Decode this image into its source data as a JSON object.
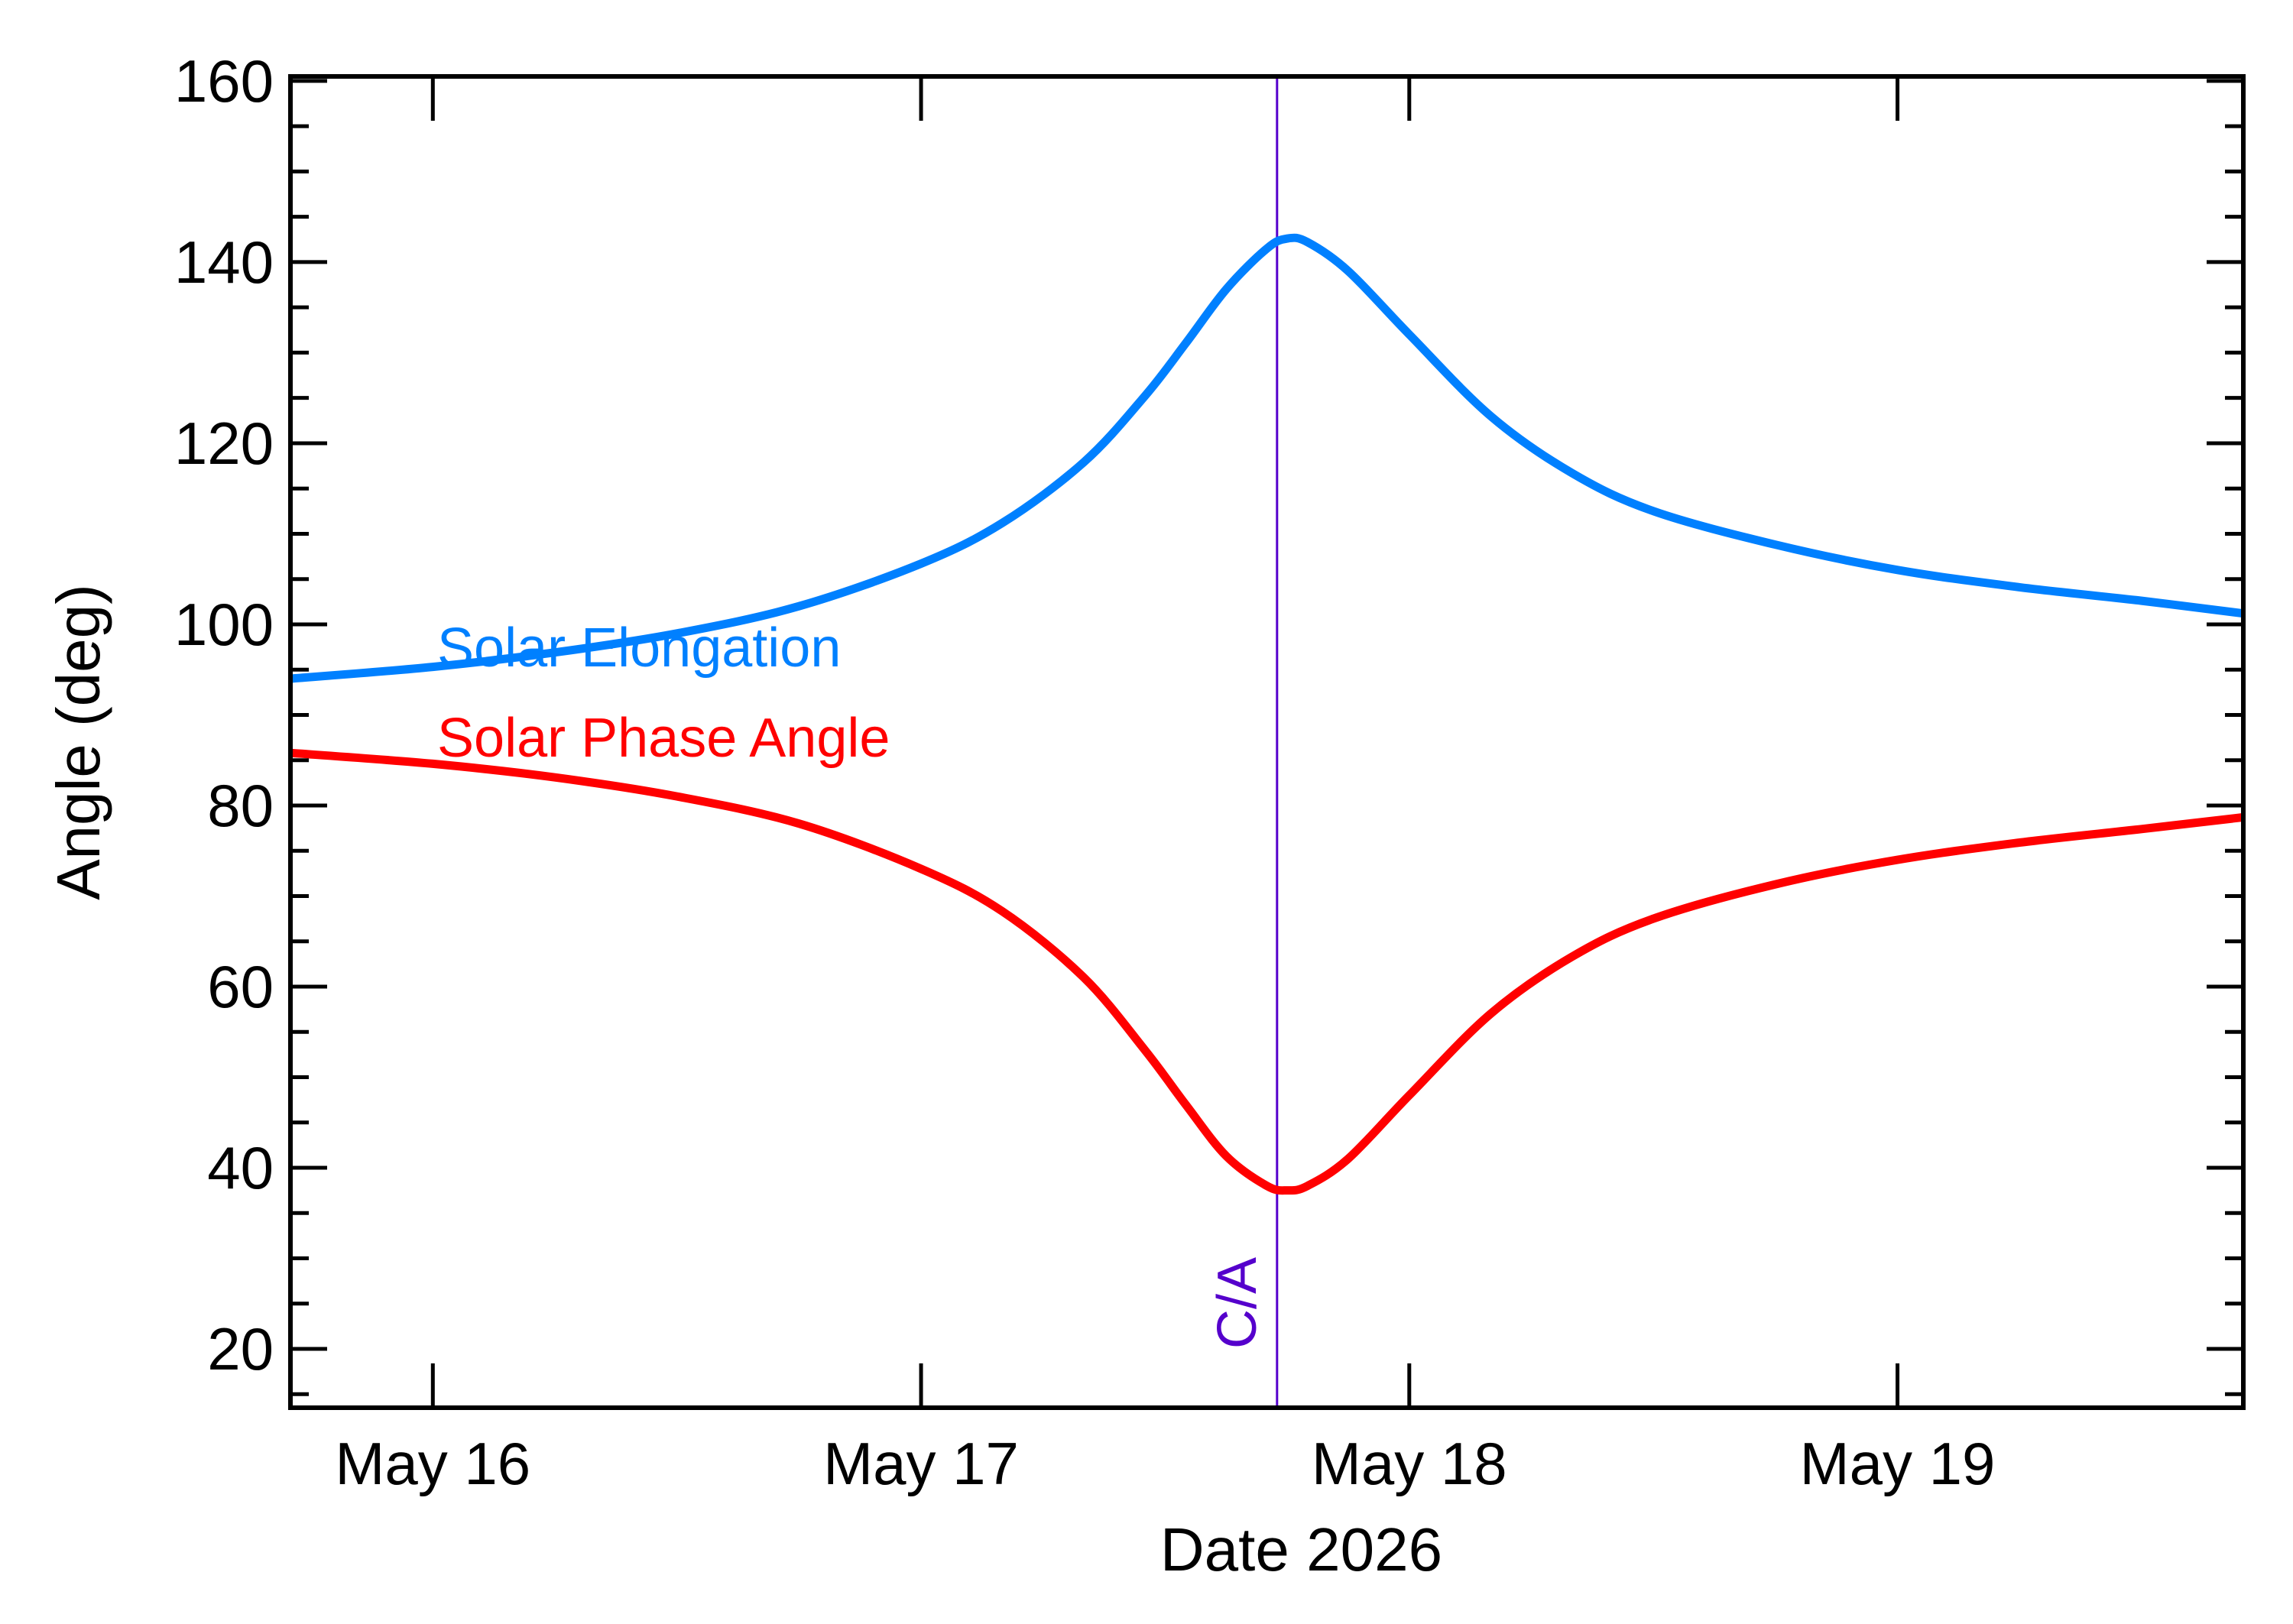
{
  "chart_data": {
    "type": "line",
    "title": "",
    "xlabel": "Date 2026",
    "ylabel": "Angle (deg)",
    "xlim": [
      "2026-05-15 17:00",
      "2026-05-19 17:00"
    ],
    "ylim": [
      13.5,
      160.5
    ],
    "x_ticks": [
      {
        "date": "2026-05-16",
        "label": "May 16"
      },
      {
        "date": "2026-05-17",
        "label": "May 17"
      },
      {
        "date": "2026-05-18",
        "label": "May 18"
      },
      {
        "date": "2026-05-19",
        "label": "May 19"
      }
    ],
    "y_ticks": [
      20,
      40,
      60,
      80,
      100,
      120,
      140,
      160
    ],
    "y_minor_step": 5,
    "grid": false,
    "legend_position": "left",
    "closest_approach": {
      "label": "C/A",
      "date": "2026-05-17 17:30",
      "color": "#5500cc"
    },
    "series": [
      {
        "name": "Solar Elongation",
        "color": "#0080ff",
        "points": [
          [
            "2026-05-15 17:00",
            94.0
          ],
          [
            "2026-05-16 00:00",
            95.3
          ],
          [
            "2026-05-16 06:00",
            96.9
          ],
          [
            "2026-05-16 12:00",
            99.0
          ],
          [
            "2026-05-16 18:00",
            102.0
          ],
          [
            "2026-05-17 00:00",
            106.7
          ],
          [
            "2026-05-17 04:00",
            111.2
          ],
          [
            "2026-05-17 08:00",
            117.9
          ],
          [
            "2026-05-17 11:00",
            125.2
          ],
          [
            "2026-05-17 13:00",
            131.0
          ],
          [
            "2026-05-17 15:00",
            137.0
          ],
          [
            "2026-05-17 17:00",
            141.5
          ],
          [
            "2026-05-17 18:00",
            142.6
          ],
          [
            "2026-05-17 19:00",
            142.2
          ],
          [
            "2026-05-17 21:00",
            139.0
          ],
          [
            "2026-05-18 00:00",
            132.0
          ],
          [
            "2026-05-18 04:00",
            123.0
          ],
          [
            "2026-05-18 08:00",
            116.7
          ],
          [
            "2026-05-18 12:00",
            112.5
          ],
          [
            "2026-05-18 18:00",
            108.8
          ],
          [
            "2026-05-19 00:00",
            106.0
          ],
          [
            "2026-05-19 06:00",
            104.1
          ],
          [
            "2026-05-19 12:00",
            102.6
          ],
          [
            "2026-05-19 17:00",
            101.2
          ]
        ]
      },
      {
        "name": "Solar Phase Angle",
        "color": "#ff0000",
        "points": [
          [
            "2026-05-15 17:00",
            85.8
          ],
          [
            "2026-05-16 00:00",
            84.6
          ],
          [
            "2026-05-16 06:00",
            83.1
          ],
          [
            "2026-05-16 12:00",
            81.0
          ],
          [
            "2026-05-16 18:00",
            78.0
          ],
          [
            "2026-05-17 00:00",
            73.0
          ],
          [
            "2026-05-17 04:00",
            68.3
          ],
          [
            "2026-05-17 08:00",
            61.0
          ],
          [
            "2026-05-17 11:00",
            53.0
          ],
          [
            "2026-05-17 13:00",
            47.0
          ],
          [
            "2026-05-17 15:00",
            41.3
          ],
          [
            "2026-05-17 17:00",
            38.0
          ],
          [
            "2026-05-17 18:00",
            37.5
          ],
          [
            "2026-05-17 19:00",
            38.0
          ],
          [
            "2026-05-17 21:00",
            41.0
          ],
          [
            "2026-05-18 00:00",
            48.0
          ],
          [
            "2026-05-18 04:00",
            57.0
          ],
          [
            "2026-05-18 08:00",
            63.3
          ],
          [
            "2026-05-18 12:00",
            67.5
          ],
          [
            "2026-05-18 18:00",
            71.3
          ],
          [
            "2026-05-19 00:00",
            74.0
          ],
          [
            "2026-05-19 06:00",
            75.9
          ],
          [
            "2026-05-19 12:00",
            77.4
          ],
          [
            "2026-05-19 17:00",
            78.7
          ]
        ]
      }
    ]
  }
}
